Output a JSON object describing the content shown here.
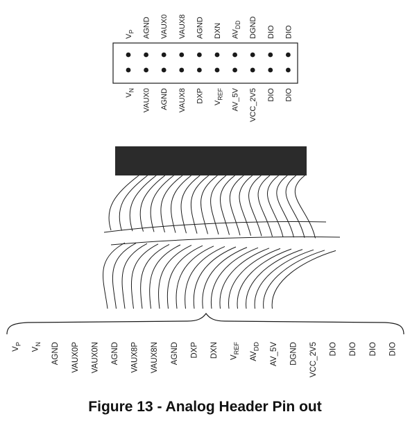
{
  "header": {
    "top_row_labels": [
      {
        "text": "V",
        "sub": "P"
      },
      {
        "text": "AGND",
        "sub": ""
      },
      {
        "text": "VAUX0",
        "sub": ""
      },
      {
        "text": "VAUX8",
        "sub": ""
      },
      {
        "text": "AGND",
        "sub": ""
      },
      {
        "text": "DXN",
        "sub": ""
      },
      {
        "text": "AV",
        "sub": "DD"
      },
      {
        "text": "DGND",
        "sub": ""
      },
      {
        "text": "DIO",
        "sub": ""
      },
      {
        "text": "DIO",
        "sub": ""
      }
    ],
    "bottom_row_labels": [
      {
        "text": "V",
        "sub": "N"
      },
      {
        "text": "VAUX0",
        "sub": ""
      },
      {
        "text": "AGND",
        "sub": ""
      },
      {
        "text": "VAUX8",
        "sub": ""
      },
      {
        "text": "DXP",
        "sub": ""
      },
      {
        "text": "V",
        "sub": "REF"
      },
      {
        "text": "AV_5V",
        "sub": ""
      },
      {
        "text": "VCC_2V5",
        "sub": ""
      },
      {
        "text": "DIO",
        "sub": ""
      },
      {
        "text": "DIO",
        "sub": ""
      }
    ]
  },
  "pinout_labels": [
    {
      "text": "V",
      "sub": "P"
    },
    {
      "text": "V",
      "sub": "N"
    },
    {
      "text": "AGND",
      "sub": ""
    },
    {
      "text": "VAUX0P",
      "sub": ""
    },
    {
      "text": "VAUX0N",
      "sub": ""
    },
    {
      "text": "AGND",
      "sub": ""
    },
    {
      "text": "VAUX8P",
      "sub": ""
    },
    {
      "text": "VAUX8N",
      "sub": ""
    },
    {
      "text": "AGND",
      "sub": ""
    },
    {
      "text": "DXP",
      "sub": ""
    },
    {
      "text": "DXN",
      "sub": ""
    },
    {
      "text": "V",
      "sub": "REF"
    },
    {
      "text": "AV",
      "sub": "DD"
    },
    {
      "text": "AV_5V",
      "sub": ""
    },
    {
      "text": "DGND",
      "sub": ""
    },
    {
      "text": "VCC_2V5",
      "sub": ""
    },
    {
      "text": "DIO",
      "sub": ""
    },
    {
      "text": "DIO",
      "sub": ""
    },
    {
      "text": "DIO",
      "sub": ""
    },
    {
      "text": "DIO",
      "sub": ""
    }
  ],
  "caption": "Figure 13 - Analog Header Pin out",
  "colors": {
    "ink": "#1a1a1a",
    "connector": "#2b2b2b"
  }
}
